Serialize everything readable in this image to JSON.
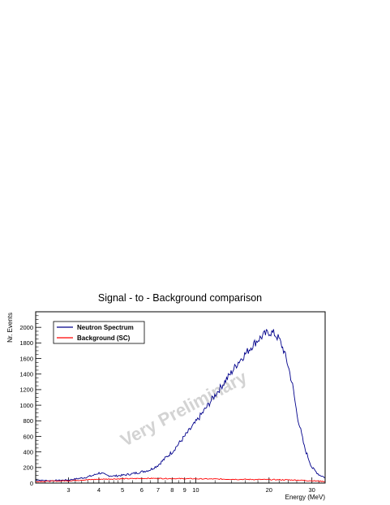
{
  "chart_data": {
    "type": "line",
    "title": "Signal - to - Background comparison",
    "xlabel": "Energy (MeV)",
    "ylabel": "Nr. Events",
    "x_scale": "log",
    "xlim": [
      2.2,
      34
    ],
    "ylim": [
      0,
      2200
    ],
    "y_ticks": [
      0,
      200,
      400,
      600,
      800,
      1000,
      1200,
      1400,
      1600,
      1800,
      2000
    ],
    "x_ticks": [
      3,
      4,
      5,
      6,
      7,
      8,
      9,
      10,
      20,
      30
    ],
    "legend_position": "top-left",
    "watermark": "Very Preliminary",
    "series": [
      {
        "name": "Neutron Spectrum",
        "color": "#00008b",
        "x": [
          2.2,
          2.5,
          3.0,
          3.5,
          3.8,
          4.0,
          4.1,
          4.3,
          4.6,
          5.0,
          5.5,
          6.0,
          6.5,
          7.0,
          7.5,
          8.0,
          9.0,
          10.0,
          11.0,
          12.0,
          13.0,
          14.0,
          15.0,
          16.0,
          17.0,
          18.0,
          19.0,
          20.0,
          21.0,
          22.0,
          23.0,
          24.0,
          25.0,
          26.0,
          28.0,
          30.0,
          32.0,
          34.0
        ],
        "y": [
          40,
          30,
          40,
          70,
          100,
          130,
          125,
          100,
          90,
          100,
          120,
          145,
          170,
          230,
          320,
          400,
          600,
          780,
          960,
          1130,
          1280,
          1420,
          1560,
          1660,
          1760,
          1840,
          1900,
          1940,
          1920,
          1850,
          1700,
          1500,
          1250,
          900,
          450,
          200,
          110,
          70
        ]
      },
      {
        "name": "Background (SC)",
        "color": "#ff0000",
        "x": [
          2.2,
          3.0,
          4.0,
          5.0,
          6.0,
          7.0,
          8.0,
          10.0,
          12.0,
          15.0,
          20.0,
          25.0,
          30.0,
          34.0
        ],
        "y": [
          20,
          30,
          50,
          55,
          60,
          60,
          58,
          55,
          52,
          48,
          45,
          40,
          30,
          20
        ]
      }
    ]
  }
}
